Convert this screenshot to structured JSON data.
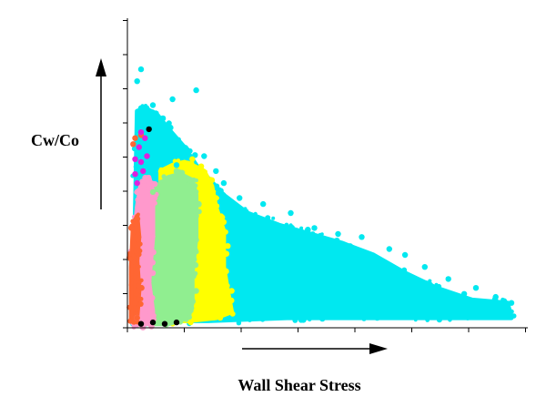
{
  "chart_data": {
    "type": "scatter",
    "title": "",
    "xlabel": "Wall Shear Stress",
    "ylabel": "Cw/Co",
    "xlim": [
      0,
      100
    ],
    "ylim": [
      0,
      100
    ],
    "grid": false,
    "legend": "none",
    "tick_labels_shown": false,
    "series": [
      {
        "color": "#00e8f0",
        "envelope": [
          [
            1,
            2
          ],
          [
            2,
            72
          ],
          [
            4,
            73
          ],
          [
            7,
            71
          ],
          [
            10,
            66
          ],
          [
            14,
            60
          ],
          [
            17,
            54
          ],
          [
            24,
            44
          ],
          [
            30,
            38
          ],
          [
            38,
            34
          ],
          [
            46,
            31
          ],
          [
            54,
            28
          ],
          [
            62,
            24
          ],
          [
            70,
            18
          ],
          [
            78,
            13
          ],
          [
            87,
            9
          ],
          [
            96,
            8
          ],
          [
            97,
            3
          ],
          [
            80,
            3
          ],
          [
            60,
            3
          ],
          [
            40,
            3
          ],
          [
            20,
            2
          ],
          [
            5,
            2
          ]
        ],
        "points": [
          [
            2,
            82
          ],
          [
            3,
            86
          ],
          [
            3,
            73
          ],
          [
            6,
            74
          ],
          [
            11,
            76
          ],
          [
            17,
            79
          ],
          [
            9,
            60
          ],
          [
            19,
            57
          ],
          [
            28,
            43
          ],
          [
            34,
            41
          ],
          [
            41,
            38
          ],
          [
            47,
            33
          ],
          [
            53,
            31
          ],
          [
            59,
            30
          ],
          [
            66,
            26
          ],
          [
            70,
            24
          ],
          [
            75,
            20
          ],
          [
            81,
            16
          ],
          [
            85,
            11
          ],
          [
            88,
            13
          ],
          [
            93,
            10
          ],
          [
            97,
            8
          ],
          [
            90,
            7
          ],
          [
            84,
            7
          ],
          [
            12,
            54
          ],
          [
            22,
            52
          ],
          [
            24,
            48
          ]
        ]
      },
      {
        "color": "#ffff00",
        "envelope": [
          [
            8,
            2
          ],
          [
            8,
            52
          ],
          [
            11,
            54
          ],
          [
            14,
            55
          ],
          [
            16,
            54
          ],
          [
            19,
            52
          ],
          [
            21,
            47
          ],
          [
            22,
            40
          ],
          [
            24,
            32
          ],
          [
            24,
            20
          ],
          [
            25,
            12
          ],
          [
            26,
            5
          ],
          [
            22,
            3
          ],
          [
            15,
            2
          ]
        ],
        "points": [
          [
            16,
            56
          ],
          [
            17,
            53
          ],
          [
            21,
            49
          ],
          [
            22,
            43
          ],
          [
            24,
            35
          ],
          [
            25,
            27
          ],
          [
            24,
            18
          ],
          [
            26,
            12
          ],
          [
            25,
            8
          ],
          [
            23,
            5
          ]
        ]
      },
      {
        "color": "#90ee90",
        "envelope": [
          [
            5,
            1
          ],
          [
            5,
            42
          ],
          [
            7,
            47
          ],
          [
            10,
            50
          ],
          [
            13,
            51
          ],
          [
            16,
            49
          ],
          [
            17,
            44
          ],
          [
            17,
            30
          ],
          [
            16,
            18
          ],
          [
            16,
            8
          ],
          [
            15,
            3
          ],
          [
            10,
            1
          ]
        ],
        "points": [
          [
            12,
            52
          ],
          [
            6,
            45
          ],
          [
            16,
            45
          ],
          [
            17,
            37
          ],
          [
            16,
            25
          ],
          [
            17,
            12
          ],
          [
            15,
            5
          ],
          [
            9,
            2
          ]
        ]
      },
      {
        "color": "#ff99cc",
        "envelope": [
          [
            1,
            1
          ],
          [
            1,
            25
          ],
          [
            2,
            40
          ],
          [
            3,
            48
          ],
          [
            5,
            50
          ],
          [
            6,
            45
          ],
          [
            6,
            30
          ],
          [
            5,
            15
          ],
          [
            6,
            5
          ],
          [
            5,
            1
          ]
        ],
        "points": [
          [
            2,
            45
          ],
          [
            4,
            49
          ],
          [
            6,
            42
          ],
          [
            5,
            30
          ],
          [
            6,
            18
          ],
          [
            5,
            6
          ],
          [
            2,
            3
          ]
        ]
      },
      {
        "color": "#ff6633",
        "envelope": [
          [
            0.5,
            2
          ],
          [
            0.5,
            20
          ],
          [
            1,
            34
          ],
          [
            2,
            37
          ],
          [
            2.5,
            30
          ],
          [
            2,
            22
          ],
          [
            2.5,
            12
          ],
          [
            2,
            3
          ]
        ],
        "points": [
          [
            0.5,
            33
          ],
          [
            1,
            28
          ],
          [
            2,
            18
          ],
          [
            1.5,
            8
          ],
          [
            2,
            3
          ],
          [
            1,
            61
          ],
          [
            1.5,
            63
          ],
          [
            3,
            64
          ]
        ]
      },
      {
        "color": "#dd22dd",
        "envelope": [],
        "points": [
          [
            1.5,
            56
          ],
          [
            2.5,
            60
          ],
          [
            3.5,
            52
          ],
          [
            4,
            63
          ],
          [
            3,
            65
          ],
          [
            1.5,
            51
          ],
          [
            3,
            55
          ],
          [
            4.5,
            57
          ],
          [
            2,
            48
          ]
        ]
      },
      {
        "color": "#000000",
        "envelope": [],
        "points": [
          [
            5,
            66
          ],
          [
            3,
            1
          ],
          [
            6,
            1.5
          ],
          [
            9,
            1
          ],
          [
            12,
            1.5
          ]
        ]
      }
    ]
  }
}
